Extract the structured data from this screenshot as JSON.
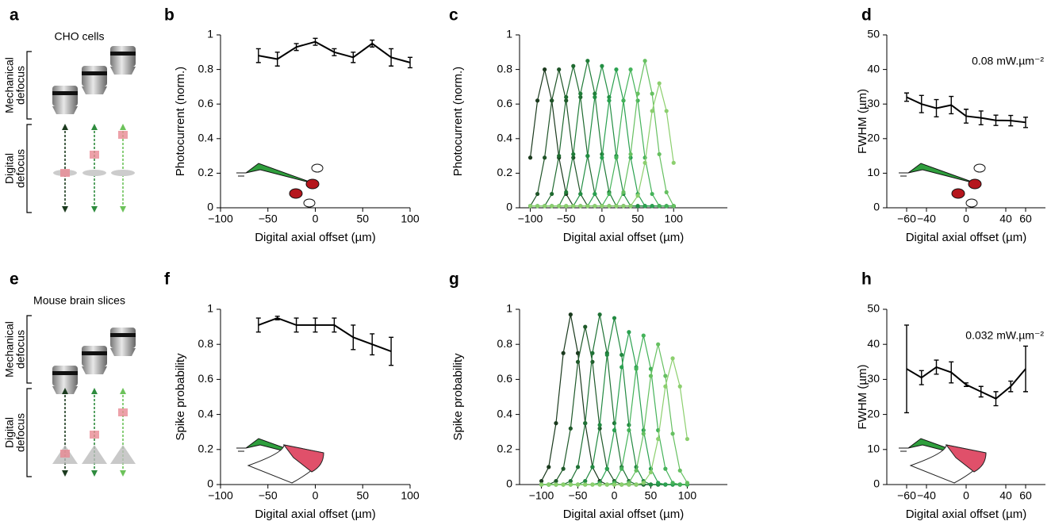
{
  "diagrams": [
    {
      "label": "a",
      "title": "CHO cells",
      "upper_bracket": [
        "Mechanical",
        "defocus"
      ],
      "lower_bracket": [
        "Digital",
        "defocus"
      ]
    },
    {
      "label": "e",
      "title": "Mouse brain slices",
      "upper_bracket": [
        "Mechanical",
        "defocus"
      ],
      "lower_bracket": [
        "Digital",
        "defocus"
      ]
    }
  ],
  "chart_data": [
    {
      "type": "line",
      "panel": "b",
      "ylabel": "Photocurrent (norm.)",
      "xlabel": "Digital axial offset (µm)",
      "x": [
        -60,
        -40,
        -20,
        0,
        20,
        40,
        60,
        80,
        100
      ],
      "values": [
        0.88,
        0.86,
        0.93,
        0.96,
        0.9,
        0.87,
        0.95,
        0.87,
        0.84
      ],
      "errors": [
        0.04,
        0.04,
        0.02,
        0.02,
        0.02,
        0.03,
        0.02,
        0.05,
        0.03
      ],
      "color": "#000000",
      "xlim": [
        -100,
        100
      ],
      "xticks": [
        {
          "value": -100,
          "label": "−100"
        },
        {
          "value": -50,
          "label": "−50"
        },
        0,
        50,
        100
      ],
      "ylim": [
        0,
        1
      ],
      "yticks": [
        0,
        0.2,
        0.4,
        0.6,
        0.8,
        1
      ]
    },
    {
      "type": "line",
      "panel": "c",
      "ylabel": "Photocurrent (norm.)",
      "xlabel": "Digital axial offset (µm)",
      "x": [
        -100,
        -90,
        -80,
        -70,
        -60,
        -50,
        -40,
        -30,
        -20,
        -10,
        0,
        10,
        20,
        30,
        40,
        50,
        60,
        70,
        80,
        90,
        100
      ],
      "series": [
        {
          "color": "#1b3a1e",
          "values": [
            0.29,
            0.62,
            0.8,
            0.62,
            0.29,
            0.08,
            0.01,
            0.01,
            0.01,
            0.01,
            0.01,
            0.01,
            0.01,
            0.01,
            0.01,
            0.01,
            0.01,
            0.01,
            0.01,
            0.01,
            0.01
          ]
        },
        {
          "color": "#1f5428",
          "values": [
            0.01,
            0.08,
            0.29,
            0.62,
            0.8,
            0.62,
            0.29,
            0.08,
            0.01,
            0.01,
            0.01,
            0.01,
            0.01,
            0.01,
            0.01,
            0.01,
            0.01,
            0.01,
            0.01,
            0.01,
            0.01
          ]
        },
        {
          "color": "#1f6a30",
          "values": [
            0.01,
            0.01,
            0.01,
            0.08,
            0.3,
            0.64,
            0.82,
            0.64,
            0.3,
            0.08,
            0.01,
            0.01,
            0.01,
            0.01,
            0.01,
            0.01,
            0.01,
            0.01,
            0.01,
            0.01,
            0.01
          ]
        },
        {
          "color": "#207c38",
          "values": [
            0.01,
            0.01,
            0.01,
            0.01,
            0.01,
            0.09,
            0.31,
            0.66,
            0.85,
            0.66,
            0.31,
            0.09,
            0.01,
            0.01,
            0.01,
            0.01,
            0.01,
            0.01,
            0.01,
            0.01,
            0.01
          ]
        },
        {
          "color": "#238f44",
          "values": [
            0.01,
            0.01,
            0.01,
            0.01,
            0.01,
            0.01,
            0.01,
            0.08,
            0.3,
            0.64,
            0.82,
            0.64,
            0.3,
            0.08,
            0.01,
            0.01,
            0.01,
            0.01,
            0.01,
            0.01,
            0.01
          ]
        },
        {
          "color": "#2aa150",
          "values": [
            0.01,
            0.01,
            0.01,
            0.01,
            0.01,
            0.01,
            0.01,
            0.01,
            0.01,
            0.08,
            0.29,
            0.62,
            0.8,
            0.62,
            0.29,
            0.08,
            0.01,
            0.01,
            0.01,
            0.01,
            0.01
          ]
        },
        {
          "color": "#45b35a",
          "values": [
            0.01,
            0.01,
            0.01,
            0.01,
            0.01,
            0.01,
            0.01,
            0.01,
            0.01,
            0.01,
            0.01,
            0.08,
            0.29,
            0.62,
            0.8,
            0.62,
            0.29,
            0.08,
            0.01,
            0.01,
            0.01
          ]
        },
        {
          "color": "#66c061",
          "values": [
            0.01,
            0.01,
            0.01,
            0.01,
            0.01,
            0.01,
            0.01,
            0.01,
            0.01,
            0.01,
            0.01,
            0.01,
            0.01,
            0.09,
            0.31,
            0.66,
            0.85,
            0.66,
            0.31,
            0.09,
            0.01
          ]
        },
        {
          "color": "#8ccf6e",
          "values": [
            0.01,
            0.01,
            0.01,
            0.01,
            0.01,
            0.01,
            0.01,
            0.01,
            0.01,
            0.01,
            0.01,
            0.01,
            0.01,
            0.01,
            0.01,
            0.07,
            0.26,
            0.56,
            0.72,
            0.56,
            0.26
          ]
        }
      ],
      "xlim": [
        -115,
        175
      ],
      "xticks": [
        {
          "value": -100,
          "label": "−100"
        },
        {
          "value": -50,
          "label": "−50"
        },
        0,
        50,
        100
      ],
      "ylim": [
        0,
        1
      ],
      "yticks": [
        0,
        0.2,
        0.4,
        0.6,
        0.8,
        1
      ]
    },
    {
      "type": "line",
      "panel": "d",
      "ylabel": "FWHM (µm)",
      "xlabel": "Digital axial offset (µm)",
      "annotation": "0.08 mW.µm⁻²",
      "x": [
        -60,
        -45,
        -30,
        -15,
        0,
        15,
        30,
        45,
        60
      ],
      "values": [
        32,
        30,
        28.8,
        29.7,
        26.5,
        26,
        25.3,
        25.2,
        24.7
      ],
      "errors": [
        1.2,
        2.5,
        2.5,
        2.5,
        2,
        2,
        1.5,
        1.5,
        1.5
      ],
      "color": "#000000",
      "xlim": [
        -80,
        80
      ],
      "xticks": [
        {
          "value": -60,
          "label": "−60"
        },
        {
          "value": -40,
          "label": "−40"
        },
        0,
        40,
        60
      ],
      "ylim": [
        0,
        50
      ],
      "yticks": [
        0,
        10,
        20,
        30,
        40,
        50
      ]
    },
    {
      "type": "line",
      "panel": "f",
      "ylabel": "Spike probability",
      "xlabel": "Digital axial offset (µm)",
      "x": [
        -60,
        -40,
        -20,
        0,
        20,
        40,
        60,
        80
      ],
      "values": [
        0.91,
        0.95,
        0.91,
        0.91,
        0.91,
        0.84,
        0.8,
        0.76
      ],
      "errors": [
        0.04,
        0.01,
        0.04,
        0.04,
        0.04,
        0.07,
        0.06,
        0.08
      ],
      "color": "#000000",
      "xlim": [
        -100,
        100
      ],
      "xticks": [
        {
          "value": -100,
          "label": "−100"
        },
        {
          "value": -50,
          "label": "−50"
        },
        0,
        50,
        100
      ],
      "ylim": [
        0,
        1
      ],
      "yticks": [
        0,
        0.2,
        0.4,
        0.6,
        0.8,
        1
      ]
    },
    {
      "type": "line",
      "panel": "g",
      "ylabel": "Spike probability",
      "xlabel": "Digital axial offset (µm)",
      "x": [
        -100,
        -90,
        -80,
        -70,
        -60,
        -50,
        -40,
        -30,
        -20,
        -10,
        0,
        10,
        20,
        30,
        40,
        50,
        60,
        70,
        80,
        90,
        100
      ],
      "series": [
        {
          "color": "#1b3a1e",
          "values": [
            0.02,
            0.1,
            0.35,
            0.75,
            0.97,
            0.75,
            0.35,
            0.1,
            0.02,
            0,
            0,
            0,
            0,
            0,
            0,
            0,
            0,
            0,
            0,
            0,
            0
          ]
        },
        {
          "color": "#1f5a2a",
          "values": [
            0,
            0,
            0.02,
            0.09,
            0.32,
            0.7,
            0.9,
            0.7,
            0.32,
            0.09,
            0.02,
            0,
            0,
            0,
            0,
            0,
            0,
            0,
            0,
            0,
            0
          ]
        },
        {
          "color": "#207236",
          "values": [
            0,
            0,
            0,
            0,
            0.02,
            0.1,
            0.35,
            0.75,
            0.97,
            0.75,
            0.35,
            0.1,
            0.02,
            0,
            0,
            0,
            0,
            0,
            0,
            0,
            0
          ]
        },
        {
          "color": "#238a42",
          "values": [
            0,
            0,
            0,
            0,
            0,
            0,
            0.02,
            0.1,
            0.34,
            0.74,
            0.95,
            0.74,
            0.34,
            0.1,
            0.02,
            0,
            0,
            0,
            0,
            0,
            0
          ]
        },
        {
          "color": "#2aa150",
          "values": [
            0,
            0,
            0,
            0,
            0,
            0,
            0,
            0,
            0.01,
            0.09,
            0.31,
            0.67,
            0.87,
            0.67,
            0.31,
            0.09,
            0.01,
            0,
            0,
            0,
            0
          ]
        },
        {
          "color": "#45b35a",
          "values": [
            0,
            0,
            0,
            0,
            0,
            0,
            0,
            0,
            0,
            0,
            0.01,
            0.09,
            0.31,
            0.66,
            0.85,
            0.66,
            0.31,
            0.09,
            0.01,
            0,
            0
          ]
        },
        {
          "color": "#66c061",
          "values": [
            0,
            0,
            0,
            0,
            0,
            0,
            0,
            0,
            0,
            0,
            0,
            0,
            0.01,
            0.08,
            0.29,
            0.62,
            0.8,
            0.62,
            0.29,
            0.08,
            0.01
          ]
        },
        {
          "color": "#8ccf6e",
          "values": [
            0,
            0,
            0,
            0,
            0,
            0,
            0,
            0,
            0,
            0,
            0,
            0,
            0,
            0,
            0.01,
            0.07,
            0.26,
            0.56,
            0.72,
            0.56,
            0.26
          ]
        }
      ],
      "xlim": [
        -130,
        155
      ],
      "xticks": [
        {
          "value": -100,
          "label": "−100"
        },
        {
          "value": -50,
          "label": "−50"
        },
        0,
        50,
        100
      ],
      "ylim": [
        0,
        1
      ],
      "yticks": [
        0,
        0.2,
        0.4,
        0.6,
        0.8,
        1
      ]
    },
    {
      "type": "line",
      "panel": "h",
      "ylabel": "FWHM (µm)",
      "xlabel": "Digital axial offset (µm)",
      "annotation": "0.032 mW.µm⁻²",
      "x": [
        -60,
        -45,
        -30,
        -15,
        0,
        15,
        30,
        45,
        60
      ],
      "values": [
        33,
        30.5,
        33.5,
        32,
        28.5,
        26.5,
        24.5,
        28,
        33
      ],
      "errors": [
        12.5,
        2,
        2,
        3,
        0.5,
        1.5,
        2,
        1.5,
        6.5
      ],
      "color": "#000000",
      "xlim": [
        -80,
        80
      ],
      "xticks": [
        {
          "value": -60,
          "label": "−60"
        },
        {
          "value": -40,
          "label": "−40"
        },
        0,
        40,
        60
      ],
      "ylim": [
        0,
        50
      ],
      "yticks": [
        0,
        10,
        20,
        30,
        40,
        50
      ]
    }
  ]
}
